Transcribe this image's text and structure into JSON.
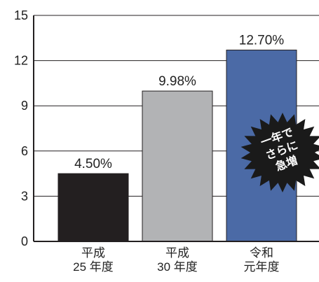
{
  "chart_data": {
    "type": "bar",
    "categories": [
      [
        "平成",
        "25 年度"
      ],
      [
        "平成",
        "30 年度"
      ],
      [
        "令和",
        "元年度"
      ]
    ],
    "values": [
      4.5,
      9.98,
      12.7
    ],
    "data_labels": [
      "4.50%",
      "9.98%",
      "12.70%"
    ],
    "bar_colors": [
      "#231f20",
      "#b2b3b5",
      "#4b6aa6"
    ],
    "ylim": [
      0,
      15
    ],
    "yticks": [
      0,
      3,
      6,
      9,
      12,
      15
    ],
    "grid": true,
    "title": "",
    "xlabel": "",
    "ylabel": "",
    "annotation": {
      "lines": [
        "一年で",
        "さらに",
        "急増"
      ],
      "shape": "starburst",
      "fill": "#1a1a1a",
      "text_color": "#ffffff",
      "category_index": 2
    }
  }
}
